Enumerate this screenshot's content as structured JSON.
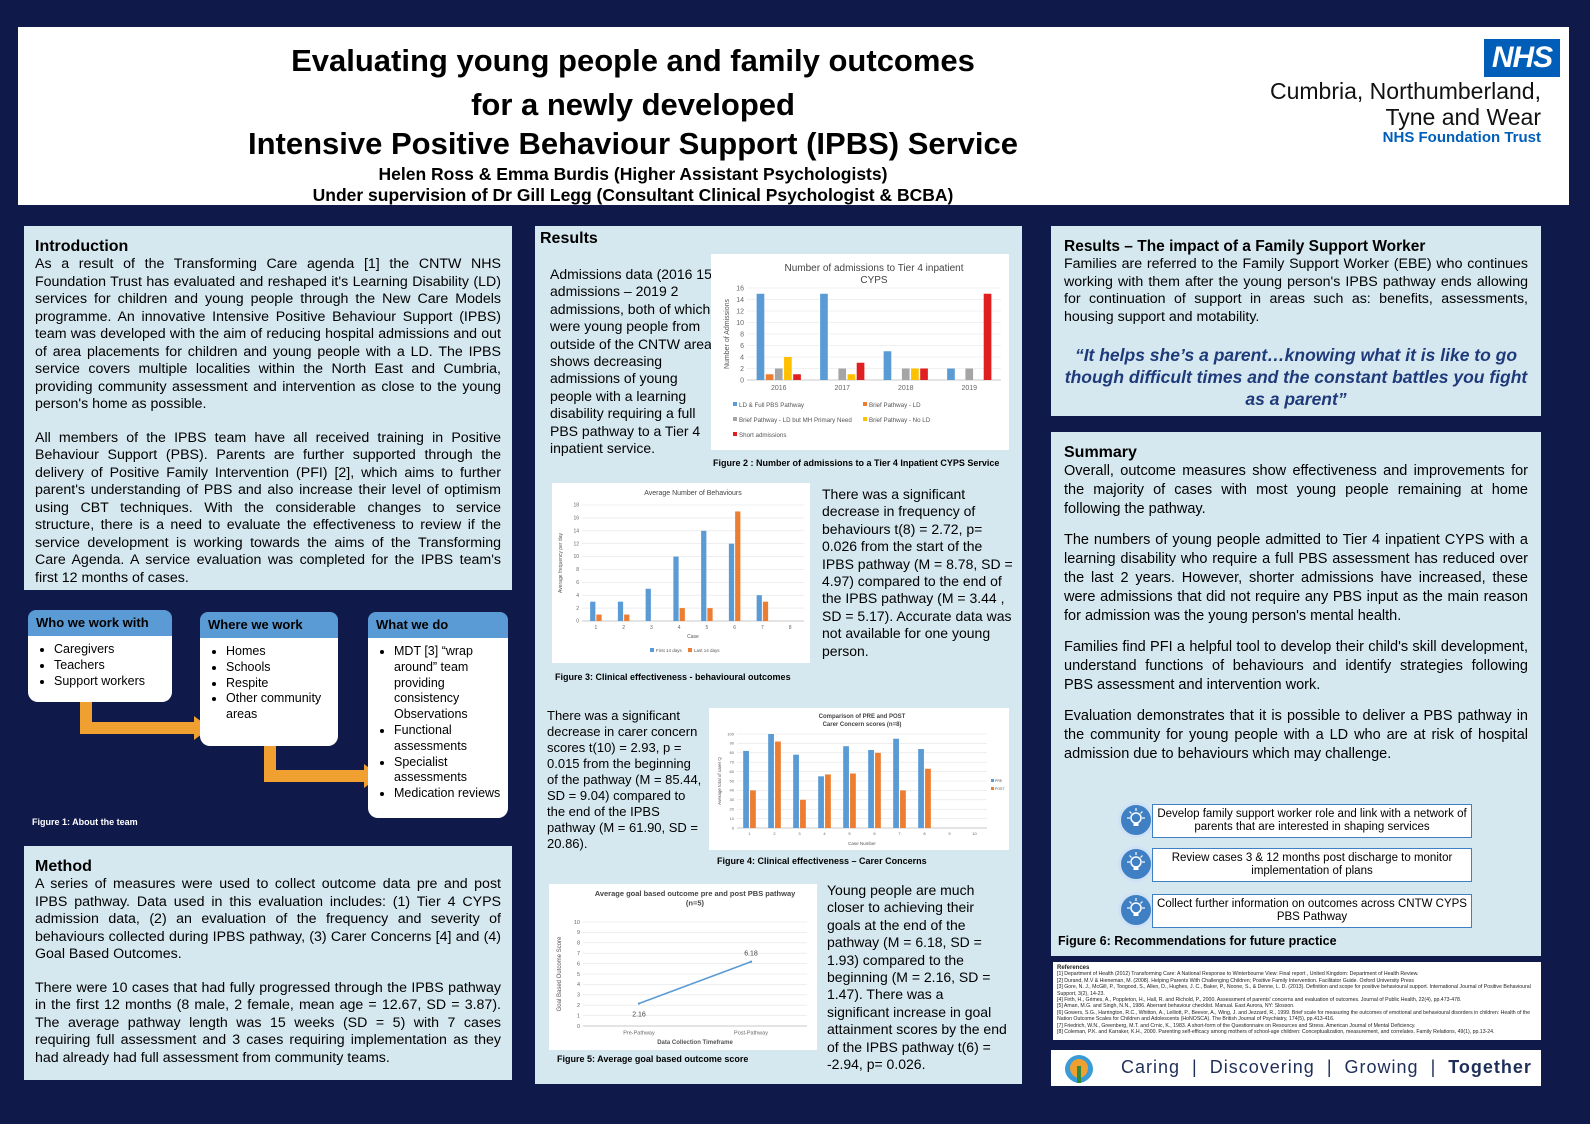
{
  "header": {
    "title_line1": "Evaluating young people and family outcomes",
    "title_line2": "for a newly developed",
    "title_line3": "Intensive Positive Behaviour Support (IPBS) Service",
    "authors": "Helen Ross & Emma Burdis (Higher Assistant Psychologists)",
    "supervision": "Under supervision of Dr Gill Legg (Consultant Clinical Psychologist & BCBA)",
    "logo_text": "NHS",
    "org_line1": "Cumbria, Northumberland,",
    "org_line2": "Tyne and Wear",
    "org_line3": "NHS Foundation Trust",
    "nhs_blue": "#005eb8"
  },
  "introduction": {
    "title": "Introduction",
    "para1": "As a result of the Transforming Care agenda [1] the CNTW NHS Foundation Trust has evaluated and reshaped it's Learning Disability (LD) services for children and young people through the New Care Models programme. An innovative Intensive Positive Behaviour Support (IPBS) team was developed with the aim of reducing hospital admissions and out of area placements for children and young people with a LD. The IPBS service covers multiple localities within the North East and Cumbria, providing community assessment and intervention as close to the young person's home as possible.",
    "para2": "All members of the IPBS team have all received training in Positive Behaviour Support (PBS). Parents are further supported through the delivery of Positive Family Intervention (PFI) [2], which aims to further parent's understanding of PBS and also increase their level of optimism using CBT techniques. With the considerable changes to service structure, there is a need to evaluate the effectiveness to review if the service development is working towards the aims of the Transforming Care Agenda. A service evaluation was completed for the IPBS team's first 12 months of cases."
  },
  "team": {
    "who": {
      "title": "Who we work with",
      "items": [
        "Caregivers",
        "Teachers",
        "Support workers"
      ]
    },
    "where": {
      "title": "Where we work",
      "items": [
        "Homes",
        "Schools",
        "Respite",
        "Other community areas"
      ]
    },
    "what": {
      "title": "What we do",
      "items": [
        "MDT [3] “wrap around” team providing consistency Observations",
        "Functional assessments",
        "Specialist assessments",
        "Medication reviews"
      ]
    },
    "caption": "Figure 1: About the team",
    "arrow_color": "#f0a030"
  },
  "method": {
    "title": "Method",
    "para1": "A series of measures were used to collect outcome data pre and post IPBS pathway. Data used in this evaluation includes: (1) Tier 4 CYPS admission data, (2) an evaluation of the frequency and severity of behaviours collected during IPBS pathway, (3) Carer Concerns [4] and (4) Goal Based Outcomes.",
    "para2": "There were 10 cases that had fully progressed through the IPBS pathway in the first 12 months (8 male, 2 female, mean age = 12.67, SD = 3.87). The average pathway length was 15 weeks (SD = 5) with 7 cases requiring full assessment and 3 cases requiring implementation as they had already had full assessment from community teams."
  },
  "results": {
    "title": "Results",
    "text1": "Admissions data (2016 15 admissions – 2019 2 admissions, both of which were young people from outside of the CNTW area) shows decreasing admissions of young people with a learning disability requiring a full PBS pathway to a Tier 4 inpatient service.",
    "caption2": "Figure 2 : Number of admissions to a Tier 4 Inpatient CYPS Service",
    "text2": "There was a significant decrease in frequency of behaviours t(8) = 2.72, p= 0.026 from the start of the IPBS pathway (M = 8.78, SD = 4.97) compared to the end of the IPBS pathway (M = 3.44 , SD = 5.17). Accurate data was not available for one young person.",
    "caption3": "Figure 3: Clinical effectiveness - behavioural outcomes",
    "text3": "There was a significant decrease in carer concern scores t(10) = 2.93, p = 0.015 from the beginning of the pathway (M = 85.44, SD = 9.04) compared to the end of the IPBS pathway (M = 61.90, SD = 20.86).",
    "caption4": "Figure 4: Clinical effectiveness – Carer Concerns",
    "text4": "Young people are much closer to achieving their goals at the end of the pathway (M = 6.18, SD = 1.93) compared to the beginning (M = 2.16, SD = 1.47). There was a significant increase in goal attainment scores by the end of the IPBS pathway t(6) = -2.94, p= 0.026.",
    "caption5": "Figure 5: Average goal based outcome score"
  },
  "family": {
    "title": "Results – The impact of a Family Support Worker",
    "text": "Families are referred to the Family Support Worker (EBE) who continues working with them after the young person's IPBS pathway ends allowing for continuation of support in areas such as: benefits, assessments, housing support and motability.",
    "quote": "“It helps she’s a parent…knowing what it is like to go though difficult times and the constant battles you fight as a parent”",
    "quote_color": "#1f3a7a"
  },
  "summary": {
    "title": "Summary",
    "para1": "Overall, outcome measures show effectiveness and improvements for the majority of cases with most young people remaining at home following the pathway.",
    "para2": "The numbers of young people admitted to Tier 4 inpatient CYPS with a learning disability who require a full PBS assessment has reduced over the last 2 years. However, shorter admissions have increased, these were admissions that did not require any PBS input as the main reason for admission was the young person's mental health.",
    "para3": "Families find PFI a helpful tool to develop their child's skill development, understand functions of behaviours and identify strategies following PBS assessment and intervention work.",
    "para4": "Evaluation demonstrates that it is possible to deliver a PBS pathway in the community for young people with a LD who are at risk of hospital admission due to behaviours which may challenge.",
    "rec1": "Develop family support worker role and link with a network of parents that are interested in shaping services",
    "rec2": "Review cases 3 & 12 months post discharge to monitor implementation of plans",
    "rec3": "Collect further information on outcomes across CNTW CYPS PBS Pathway",
    "caption6": "Figure 6: Recommendations for future practice",
    "rec_icon": "lightbulb-icon"
  },
  "references": {
    "title": "References",
    "items": [
      "[1] Department of Health (2012) Transforming Care: A National Response to Winterbourne View: Final report , United Kingdom: Department of Health Review.",
      "[2] Durand, M.V & Hieneman, M. (2008). Helping Parents With Challenging Children; Positive Family Intervention. Facilitator Guide. Oxford University Press",
      "[3] Gore, N. J., McGill, P., Toogood, S., Allen, D., Hughes, J. C., Baker, P., Noone, S., & Denne, L. D. (2013). Definition and scope for positive behavioural support. International Journal of Positive Behavioural Support, 3(2), 14-23.",
      "[4] Firth, H., Grimes, A., Poppleton, H., Hall, R. and Richold, P., 2000. Assessment of parents' concerns and evaluation of outcomes. Journal of Public Health, 22(4), pp.473-478.",
      "[5] Aman, M.G. and Singh, N.N., 1986. Aberrant behaviour checklist. Manual. East Aurora, NY: Slosson.",
      "[6] Gowers, S.G., Harrington, R.C., Whitton, A., Lelliott, P., Beevor, A., Wing, J. and Jezzard, R., 1999. Brief scale for measuring the outcomes of emotional and behavioural disorders in children: Health of the Nation Outcome Scales for Children and Adolescents (HoNOSCA). The British Journal of Psychiatry, 174(5), pp.413-416.",
      "[7] Friedrich, W.N., Greenberg, M.T. and Crnic, K., 1983. A short-form of the Questionnaire on Resources and Stress. American Journal of Mental Deficiency.",
      "[8] Coleman, P.K. and Karraker, K.H., 2000. Parenting self-efficacy among mothers of school-age children: Conceptualization, measurement, and correlates. Family Relations, 49(1), pp.13-24."
    ]
  },
  "footer": {
    "tagline_1": "Caring",
    "tagline_2": "Discovering",
    "tagline_3": "Growing",
    "tagline_4": "Together",
    "separator": "|",
    "logo_icon": "cntw-drop-logo-icon"
  },
  "chart_data": [
    {
      "type": "bar",
      "title": "Number of admissions to Tier 4 inpatient CYPS",
      "ylabel": "Number of Admissions",
      "categories": [
        "2016",
        "2017",
        "2018",
        "2019"
      ],
      "ylim": [
        0,
        16
      ],
      "yticks": [
        0,
        2,
        4,
        6,
        8,
        10,
        12,
        14,
        16
      ],
      "series": [
        {
          "name": "LD & Full PBS Pathway",
          "color": "#5b9bd5",
          "values": [
            15,
            15,
            5,
            2
          ]
        },
        {
          "name": "Brief Pathway - LD",
          "color": "#ed7d31",
          "values": [
            1,
            0,
            0,
            0
          ]
        },
        {
          "name": "Brief Pathway - LD but MH Primary Need",
          "color": "#a5a5a5",
          "values": [
            2,
            2,
            2,
            2
          ]
        },
        {
          "name": "Brief Pathway - No LD",
          "color": "#ffc000",
          "values": [
            4,
            1,
            2,
            0
          ]
        },
        {
          "name": "Short admissions",
          "color": "#e02020",
          "values": [
            1,
            3,
            2,
            15
          ]
        }
      ],
      "legend": "bottom"
    },
    {
      "type": "bar",
      "title": "Average Number of Behaviours",
      "xlabel": "Case",
      "ylabel": "Average frequency per day",
      "categories": [
        "1",
        "2",
        "3",
        "4",
        "5",
        "6",
        "7",
        "8"
      ],
      "ylim": [
        0,
        18
      ],
      "yticks": [
        0,
        2,
        4,
        6,
        8,
        10,
        12,
        14,
        16,
        18
      ],
      "series": [
        {
          "name": "First 14 days",
          "color": "#5b9bd5",
          "values": [
            3,
            3,
            5,
            10,
            14,
            12,
            4,
            0
          ]
        },
        {
          "name": "Last 14 days",
          "color": "#ed7d31",
          "values": [
            1,
            1,
            0,
            2,
            2,
            17,
            3,
            0
          ]
        }
      ],
      "legend": "bottom"
    },
    {
      "type": "bar",
      "title": "Comparison of PRE and POST Carer Concern scores (n=8)",
      "xlabel": "Case Number",
      "ylabel": "Average total of carer Q",
      "categories": [
        "1",
        "2",
        "3",
        "4",
        "5",
        "6",
        "7",
        "8",
        "9",
        "10"
      ],
      "ylim": [
        0,
        100
      ],
      "yticks": [
        0,
        10,
        20,
        30,
        40,
        50,
        60,
        70,
        80,
        90,
        100
      ],
      "series": [
        {
          "name": "PRE",
          "color": "#5b9bd5",
          "values": [
            82,
            100,
            78,
            55,
            87,
            83,
            95,
            84,
            0,
            0
          ]
        },
        {
          "name": "POST",
          "color": "#ed7d31",
          "values": [
            40,
            92,
            30,
            57,
            58,
            80,
            40,
            63,
            0,
            0
          ]
        }
      ],
      "legend": "right"
    },
    {
      "type": "line",
      "title": "Average goal based outcome pre and post PBS pathway (n=5)",
      "xlabel": "Data Collection Timeframe",
      "ylabel": "Goal Based Outcome Score",
      "categories": [
        "Pre-Pathway",
        "Post-Pathway"
      ],
      "ylim": [
        0,
        10
      ],
      "yticks": [
        0,
        1,
        2,
        3,
        4,
        5,
        6,
        7,
        8,
        9,
        10
      ],
      "series": [
        {
          "name": "",
          "color": "#5b9bd5",
          "values": [
            2.16,
            6.18
          ]
        }
      ],
      "data_labels": [
        "2.16",
        "6.18"
      ]
    }
  ]
}
